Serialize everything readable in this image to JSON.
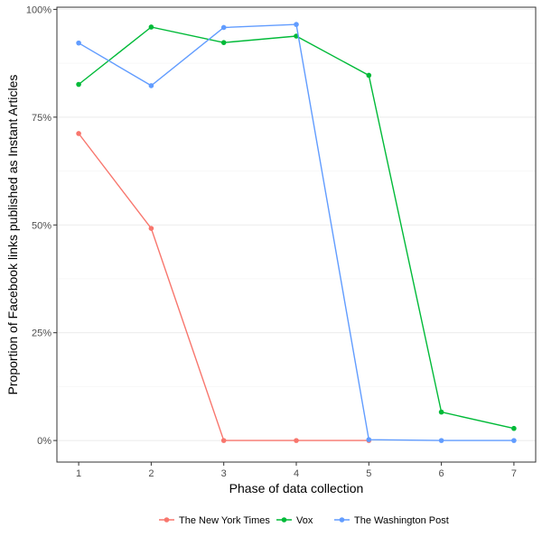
{
  "chart_data": {
    "type": "line",
    "xlabel": "Phase of data collection",
    "ylabel": "Proportion of Facebook links published as Instant Articles",
    "x": [
      1,
      2,
      3,
      4,
      5,
      6,
      7
    ],
    "xlim": [
      0.7,
      7.3
    ],
    "ylim": [
      -0.05,
      1.005
    ],
    "y_ticks": [
      {
        "value": 0,
        "label": "0%"
      },
      {
        "value": 0.25,
        "label": "25%"
      },
      {
        "value": 0.5,
        "label": "50%"
      },
      {
        "value": 0.75,
        "label": "75%"
      },
      {
        "value": 1.0,
        "label": "100%"
      }
    ],
    "x_ticks": [
      {
        "value": 1,
        "label": "1"
      },
      {
        "value": 2,
        "label": "2"
      },
      {
        "value": 3,
        "label": "3"
      },
      {
        "value": 4,
        "label": "4"
      },
      {
        "value": 5,
        "label": "5"
      },
      {
        "value": 6,
        "label": "6"
      },
      {
        "value": 7,
        "label": "7"
      }
    ],
    "grid": true,
    "legend_position": "bottom",
    "series": [
      {
        "name": "The New York Times",
        "color": "#F8766D",
        "x": [
          1,
          2,
          3,
          4,
          5
        ],
        "values": [
          0.712,
          0.492,
          0.0,
          0.0,
          0.0
        ]
      },
      {
        "name": "Vox",
        "color": "#00BA38",
        "x": [
          1,
          2,
          3,
          4,
          5,
          6,
          7
        ],
        "values": [
          0.826,
          0.959,
          0.923,
          0.938,
          0.847,
          0.066,
          0.028
        ]
      },
      {
        "name": "The Washington Post",
        "color": "#619CFF",
        "x": [
          1,
          2,
          3,
          4,
          5,
          6,
          7
        ],
        "values": [
          0.922,
          0.823,
          0.958,
          0.965,
          0.002,
          0.0,
          0.0
        ]
      }
    ]
  }
}
